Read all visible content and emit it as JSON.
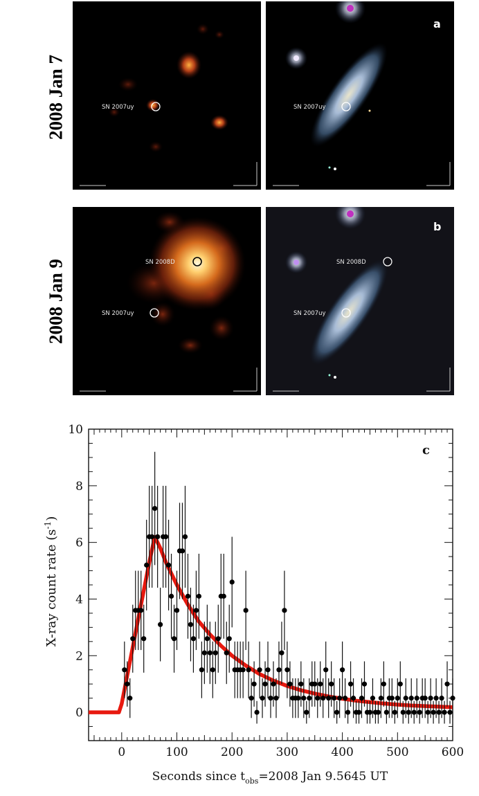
{
  "rows": [
    {
      "label": "2008 Jan 7",
      "panel_letter": "a",
      "left": {
        "sources": [
          {
            "name": "SN 2007uy"
          }
        ]
      },
      "right": {
        "sources": [
          {
            "name": "SN 2007uy"
          }
        ]
      }
    },
    {
      "label": "2008 Jan 9",
      "panel_letter": "b",
      "left": {
        "sources": [
          {
            "name": "SN 2008D"
          },
          {
            "name": "SN 2007uy"
          }
        ]
      },
      "right": {
        "sources": [
          {
            "name": "SN 2008D"
          },
          {
            "name": "SN 2007uy"
          }
        ]
      }
    }
  ],
  "colors": {
    "fit": "#e8190f",
    "points": "#000000",
    "xray_glow": "#ffb43a",
    "galaxy": "#9fb8d6"
  },
  "chart_data": {
    "type": "scatter",
    "panel_letter": "c",
    "xlabel": "Seconds since t",
    "xlabel_sub": "obs",
    "xlabel_tail": "=2008 Jan 9.5645 UT",
    "ylabel": "X-ray count rate (s",
    "ylabel_sup": "-1",
    "ylabel_tail": ")",
    "xlim": [
      -60,
      600
    ],
    "ylim": [
      -1,
      10
    ],
    "xticks": [
      0,
      100,
      200,
      300,
      400,
      500,
      600
    ],
    "yticks": [
      0,
      2,
      4,
      6,
      8,
      10
    ],
    "series": [
      {
        "kind": "points",
        "x": [
          5,
          10,
          15,
          20,
          25,
          30,
          35,
          40,
          45,
          50,
          55,
          60,
          65,
          70,
          75,
          80,
          85,
          90,
          95,
          100,
          105,
          110,
          115,
          120,
          125,
          130,
          135,
          140,
          145,
          150,
          155,
          160,
          165,
          170,
          175,
          180,
          185,
          190,
          195,
          200,
          205,
          210,
          215,
          220,
          225,
          230,
          235,
          240,
          245,
          250,
          255,
          260,
          265,
          270,
          275,
          280,
          285,
          290,
          295,
          300,
          305,
          310,
          315,
          320,
          325,
          330,
          335,
          340,
          345,
          350,
          355,
          360,
          365,
          370,
          375,
          380,
          385,
          390,
          395,
          400,
          405,
          410,
          415,
          420,
          425,
          430,
          435,
          440,
          445,
          450,
          455,
          460,
          465,
          470,
          475,
          480,
          485,
          490,
          495,
          500,
          505,
          510,
          515,
          520,
          525,
          530,
          535,
          540,
          545,
          550,
          555,
          560,
          565,
          570,
          575,
          580,
          585,
          590,
          595,
          600
        ],
        "y": [
          1.5,
          1.0,
          0.5,
          2.6,
          3.6,
          3.6,
          3.6,
          2.6,
          5.2,
          6.2,
          6.2,
          7.2,
          6.2,
          3.1,
          6.2,
          6.2,
          5.2,
          4.1,
          2.6,
          3.6,
          5.7,
          5.7,
          6.2,
          4.1,
          3.1,
          2.6,
          3.6,
          4.1,
          1.5,
          2.1,
          2.6,
          2.1,
          1.5,
          2.1,
          2.6,
          4.1,
          4.1,
          2.1,
          2.6,
          4.6,
          1.5,
          1.5,
          1.5,
          1.5,
          3.6,
          1.5,
          0.5,
          1.0,
          0.0,
          1.5,
          0.5,
          1.0,
          1.5,
          0.5,
          1.0,
          0.5,
          1.5,
          2.1,
          3.6,
          1.5,
          1.0,
          0.5,
          0.5,
          0.5,
          1.0,
          0.5,
          0.0,
          0.5,
          1.0,
          1.0,
          0.5,
          1.0,
          0.5,
          1.5,
          0.5,
          1.0,
          0.5,
          0.0,
          0.5,
          1.5,
          0.5,
          0.0,
          1.0,
          0.5,
          0.0,
          0.0,
          0.5,
          1.0,
          0.0,
          0.0,
          0.5,
          0.0,
          0.0,
          0.5,
          1.0,
          0.0,
          0.5,
          0.5,
          0.0,
          0.5,
          1.0,
          0.0,
          0.5,
          0.0,
          0.5,
          0.0,
          0.5,
          0.0,
          0.5,
          0.5,
          0.0,
          0.5,
          0.0,
          0.5,
          0.0,
          0.5,
          0.0,
          1.0,
          0.0,
          0.5
        ],
        "err": [
          1.0,
          0.8,
          0.7,
          1.2,
          1.4,
          1.4,
          1.4,
          1.2,
          1.6,
          1.8,
          1.8,
          2.0,
          1.8,
          1.3,
          1.8,
          1.8,
          1.6,
          1.5,
          1.2,
          1.4,
          1.7,
          1.7,
          1.8,
          1.5,
          1.3,
          1.2,
          1.4,
          1.5,
          1.0,
          1.1,
          1.2,
          1.1,
          1.0,
          1.1,
          1.2,
          1.5,
          1.5,
          1.1,
          1.2,
          1.6,
          1.0,
          1.0,
          1.0,
          1.0,
          1.4,
          1.0,
          0.7,
          0.8,
          0.4,
          1.0,
          0.7,
          0.8,
          1.0,
          0.7,
          0.8,
          0.7,
          1.0,
          1.1,
          1.4,
          1.0,
          0.8,
          0.7,
          0.7,
          0.7,
          0.8,
          0.7,
          0.4,
          0.7,
          0.8,
          0.8,
          0.7,
          0.8,
          0.7,
          1.0,
          0.7,
          0.8,
          0.7,
          0.4,
          0.7,
          1.0,
          0.7,
          0.4,
          0.8,
          0.7,
          0.4,
          0.4,
          0.7,
          0.8,
          0.4,
          0.4,
          0.7,
          0.4,
          0.4,
          0.7,
          0.8,
          0.4,
          0.7,
          0.7,
          0.4,
          0.7,
          0.8,
          0.4,
          0.7,
          0.4,
          0.7,
          0.4,
          0.7,
          0.4,
          0.7,
          0.7,
          0.4,
          0.7,
          0.4,
          0.7,
          0.4,
          0.7,
          0.4,
          0.8,
          0.4,
          0.7
        ]
      },
      {
        "kind": "fit",
        "x": [
          -60,
          -5,
          0,
          10,
          20,
          30,
          40,
          50,
          60,
          70,
          80,
          100,
          120,
          140,
          160,
          180,
          200,
          225,
          250,
          275,
          300,
          325,
          350,
          375,
          400,
          425,
          450,
          475,
          500,
          525,
          550,
          575,
          600
        ],
        "y": [
          0,
          0,
          0.3,
          1.3,
          2.3,
          3.3,
          4.3,
          5.3,
          6.2,
          5.8,
          5.3,
          4.5,
          3.8,
          3.2,
          2.75,
          2.35,
          2.0,
          1.65,
          1.35,
          1.12,
          0.93,
          0.78,
          0.66,
          0.56,
          0.48,
          0.41,
          0.36,
          0.31,
          0.27,
          0.24,
          0.22,
          0.2,
          0.18
        ]
      }
    ]
  }
}
